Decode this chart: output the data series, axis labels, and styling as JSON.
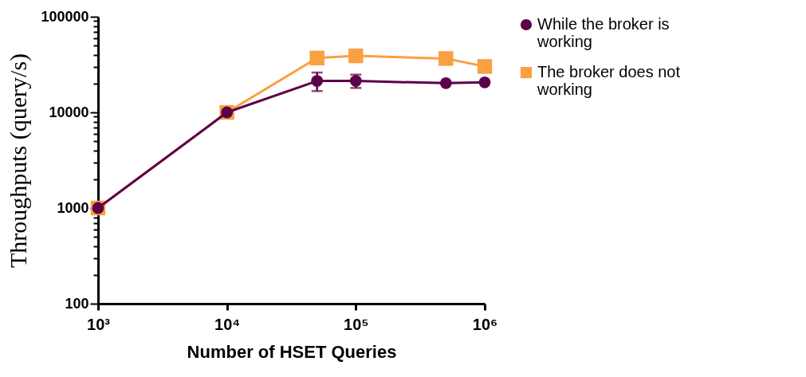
{
  "chart_data": {
    "type": "line",
    "xlabel": "Number of HSET Queries",
    "ylabel": "Throughputs (query/s)",
    "log": "xy",
    "grid": false,
    "legend": "top right",
    "line_style": "solid",
    "x": [
      1000,
      10000,
      50000,
      100000,
      500000,
      1000000
    ],
    "xlim": [
      1000,
      1000000
    ],
    "xticks": [
      {
        "value": 1000,
        "label": "10³"
      },
      {
        "value": 10000,
        "label": "10⁴"
      },
      {
        "value": 100000,
        "label": "10⁵"
      },
      {
        "value": 1000000,
        "label": "10⁶"
      }
    ],
    "ylim": [
      100,
      100000
    ],
    "yticks": [
      100,
      {
        "value": 200,
        "label": null
      },
      {
        "value": 300,
        "label": null
      },
      {
        "value": 400,
        "label": null
      },
      {
        "value": 500,
        "label": null
      },
      {
        "value": 600,
        "label": null
      },
      {
        "value": 700,
        "label": null
      },
      {
        "value": 800,
        "label": null
      },
      {
        "value": 900,
        "label": null
      },
      1000,
      {
        "value": 2000,
        "label": null
      },
      {
        "value": 3000,
        "label": null
      },
      {
        "value": 4000,
        "label": null
      },
      {
        "value": 5000,
        "label": null
      },
      {
        "value": 6000,
        "label": null
      },
      {
        "value": 7000,
        "label": null
      },
      {
        "value": 8000,
        "label": null
      },
      {
        "value": 9000,
        "label": null
      },
      10000,
      {
        "value": 20000,
        "label": null
      },
      {
        "value": 30000,
        "label": null
      },
      {
        "value": 40000,
        "label": null
      },
      {
        "value": 50000,
        "label": null
      },
      {
        "value": 60000,
        "label": null
      },
      {
        "value": 70000,
        "label": null
      },
      {
        "value": 80000,
        "label": null
      },
      {
        "value": 90000,
        "label": null
      },
      100000
    ],
    "series": [
      {
        "name": "While the broker is working",
        "color": "#5c0049",
        "marker": "circle",
        "values": [
          1000,
          10000,
          21300,
          21300,
          20200,
          20600
        ],
        "errors": [
          null,
          null,
          [
            16700,
            26100
          ],
          [
            18000,
            24800
          ],
          null,
          null
        ]
      },
      {
        "name": "The broker does not working",
        "color": "#f9a040",
        "marker": "square",
        "values": [
          1000,
          10000,
          37000,
          39000,
          36600,
          30200
        ]
      }
    ]
  }
}
